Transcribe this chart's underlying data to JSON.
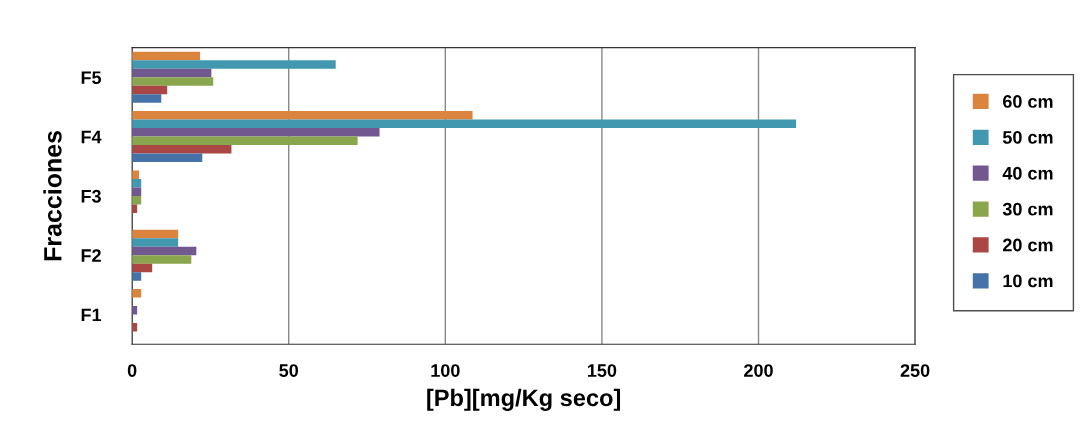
{
  "chart_data": {
    "type": "bar",
    "orientation": "horizontal",
    "xlabel": "[Pb][mg/Kg seco]",
    "ylabel": "Fracciones",
    "categories": [
      "F5",
      "F4",
      "F3",
      "F2",
      "F1"
    ],
    "series": [
      {
        "name": "60 cm",
        "color": "#db843d",
        "values": [
          21.7,
          108.7,
          2.2,
          14.7,
          2.9
        ]
      },
      {
        "name": "50 cm",
        "color": "#4198af",
        "values": [
          65,
          212,
          2.9,
          14.7,
          0
        ]
      },
      {
        "name": "40 cm",
        "color": "#71588f",
        "values": [
          25.3,
          79,
          2.9,
          20.5,
          1.6
        ]
      },
      {
        "name": "30 cm",
        "color": "#89a54e",
        "values": [
          25.9,
          72,
          2.9,
          18.9,
          0
        ]
      },
      {
        "name": "20 cm",
        "color": "#aa4643",
        "values": [
          11.2,
          31.7,
          1.6,
          6.4,
          1.6
        ]
      },
      {
        "name": "10 cm",
        "color": "#4572a7",
        "values": [
          9.3,
          22.4,
          0,
          2.9,
          0
        ]
      }
    ],
    "xlim": [
      0,
      250
    ],
    "xticks": [
      0,
      50,
      100,
      150,
      200,
      250
    ],
    "grid": "x",
    "legend": "right"
  }
}
